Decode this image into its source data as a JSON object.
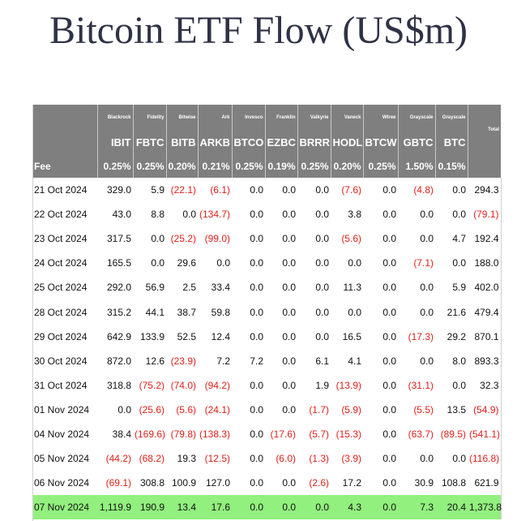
{
  "title": "Bitcoin ETF Flow (US$m)",
  "issuers": [
    "Blackrock",
    "Fidelity",
    "Bitwise",
    "Ark",
    "Invesco",
    "Franklin",
    "Valkyrie",
    "Vaneck",
    "Wtree",
    "Grayscale",
    "Grayscale"
  ],
  "tickers": [
    "IBIT",
    "FBTC",
    "BITB",
    "ARKB",
    "BTCO",
    "EZBC",
    "BRRR",
    "HODL",
    "BTCW",
    "GBTC",
    "BTC"
  ],
  "total_label": "Total",
  "fee_label": "Fee",
  "fees": [
    "0.25%",
    "0.25%",
    "0.20%",
    "0.21%",
    "0.25%",
    "0.19%",
    "0.25%",
    "0.20%",
    "0.25%",
    "1.50%",
    "0.15%"
  ],
  "highlight_color": "#92f07e",
  "negative_color": "#e0201a",
  "rows": [
    {
      "date": "21 Oct 2024",
      "values": [
        "329.0",
        "5.9",
        "(22.1)",
        "(6.1)",
        "0.0",
        "0.0",
        "0.0",
        "(7.6)",
        "0.0",
        "(4.8)",
        "0.0"
      ],
      "total": "294.3"
    },
    {
      "date": "22 Oct 2024",
      "values": [
        "43.0",
        "8.8",
        "0.0",
        "(134.7)",
        "0.0",
        "0.0",
        "0.0",
        "3.8",
        "0.0",
        "0.0",
        "0.0"
      ],
      "total": "(79.1)"
    },
    {
      "date": "23 Oct 2024",
      "values": [
        "317.5",
        "0.0",
        "(25.2)",
        "(99.0)",
        "0.0",
        "0.0",
        "0.0",
        "(5.6)",
        "0.0",
        "0.0",
        "4.7"
      ],
      "total": "192.4"
    },
    {
      "date": "24 Oct 2024",
      "values": [
        "165.5",
        "0.0",
        "29.6",
        "0.0",
        "0.0",
        "0.0",
        "0.0",
        "0.0",
        "0.0",
        "(7.1)",
        "0.0"
      ],
      "total": "188.0"
    },
    {
      "date": "25 Oct 2024",
      "values": [
        "292.0",
        "56.9",
        "2.5",
        "33.4",
        "0.0",
        "0.0",
        "0.0",
        "11.3",
        "0.0",
        "0.0",
        "5.9"
      ],
      "total": "402.0"
    },
    {
      "date": "28 Oct 2024",
      "values": [
        "315.2",
        "44.1",
        "38.7",
        "59.8",
        "0.0",
        "0.0",
        "0.0",
        "0.0",
        "0.0",
        "0.0",
        "21.6"
      ],
      "total": "479.4"
    },
    {
      "date": "29 Oct 2024",
      "values": [
        "642.9",
        "133.9",
        "52.5",
        "12.4",
        "0.0",
        "0.0",
        "0.0",
        "16.5",
        "0.0",
        "(17.3)",
        "29.2"
      ],
      "total": "870.1"
    },
    {
      "date": "30 Oct 2024",
      "values": [
        "872.0",
        "12.6",
        "(23.9)",
        "7.2",
        "7.2",
        "0.0",
        "6.1",
        "4.1",
        "0.0",
        "0.0",
        "8.0"
      ],
      "total": "893.3"
    },
    {
      "date": "31 Oct 2024",
      "values": [
        "318.8",
        "(75.2)",
        "(74.0)",
        "(94.2)",
        "0.0",
        "0.0",
        "1.9",
        "(13.9)",
        "0.0",
        "(31.1)",
        "0.0"
      ],
      "total": "32.3"
    },
    {
      "date": "01 Nov 2024",
      "values": [
        "0.0",
        "(25.6)",
        "(5.6)",
        "(24.1)",
        "0.0",
        "0.0",
        "(1.7)",
        "(5.9)",
        "0.0",
        "(5.5)",
        "13.5"
      ],
      "total": "(54.9)"
    },
    {
      "date": "04 Nov 2024",
      "values": [
        "38.4",
        "(169.6)",
        "(79.8)",
        "(138.3)",
        "0.0",
        "(17.6)",
        "(5.7)",
        "(15.3)",
        "0.0",
        "(63.7)",
        "(89.5)"
      ],
      "total": "(541.1)"
    },
    {
      "date": "05 Nov 2024",
      "values": [
        "(44.2)",
        "(68.2)",
        "19.3",
        "(12.5)",
        "0.0",
        "(6.0)",
        "(1.3)",
        "(3.9)",
        "0.0",
        "0.0",
        "0.0"
      ],
      "total": "(116.8)"
    },
    {
      "date": "06 Nov 2024",
      "values": [
        "(69.1)",
        "308.8",
        "100.9",
        "127.0",
        "0.0",
        "0.0",
        "(2.6)",
        "17.2",
        "0.0",
        "30.9",
        "108.8"
      ],
      "total": "621.9"
    },
    {
      "date": "07 Nov 2024",
      "values": [
        "1,119.9",
        "190.9",
        "13.4",
        "17.6",
        "0.0",
        "0.0",
        "0.0",
        "4.3",
        "0.0",
        "7.3",
        "20.4"
      ],
      "total": "1,373.8",
      "highlight": true
    }
  ]
}
